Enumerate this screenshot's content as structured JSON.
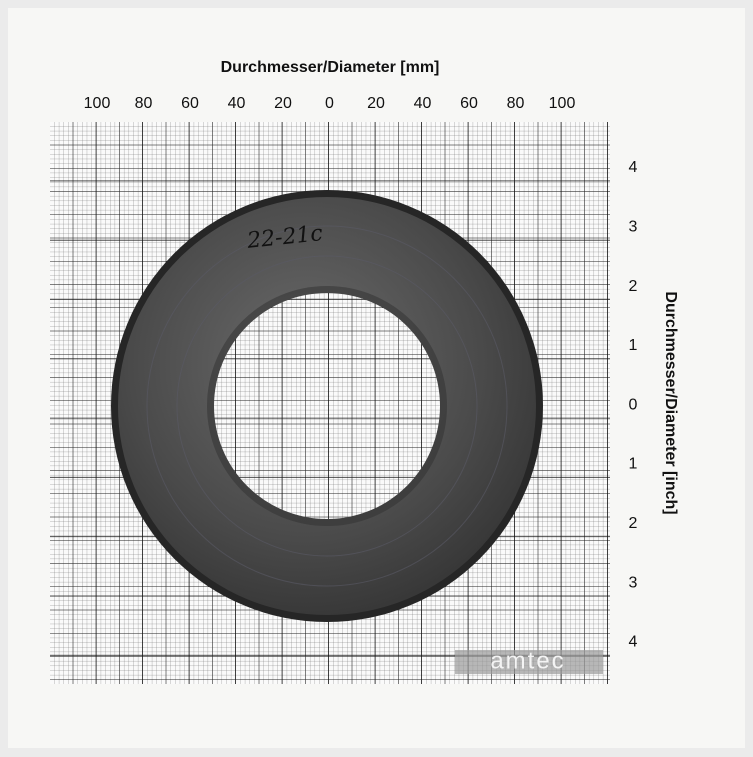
{
  "title": "Durchmesser/Diameter [mm]",
  "x_axis": {
    "ticks": [
      "100",
      "80",
      "60",
      "40",
      "20",
      "0",
      "20",
      "40",
      "60",
      "80",
      "100"
    ]
  },
  "y_axis": {
    "label": "Durchmesser/Diameter [inch]",
    "ticks": [
      "4",
      "3",
      "2",
      "1",
      "0",
      "1",
      "2",
      "3",
      "4"
    ]
  },
  "handwriting": "22-21c",
  "watermark": "amtec"
}
